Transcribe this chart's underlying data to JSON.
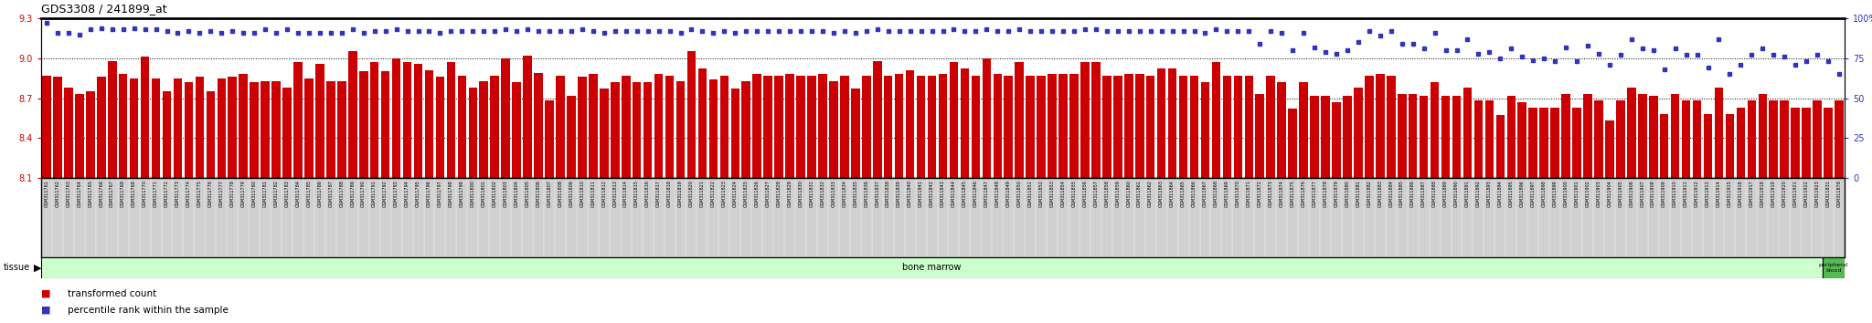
{
  "title": "GDS3308 / 241899_at",
  "ylim_left": [
    8.1,
    9.3
  ],
  "ylim_right": [
    0,
    100
  ],
  "yticks_left": [
    8.1,
    8.4,
    8.7,
    9.0,
    9.3
  ],
  "yticks_right": [
    0,
    25,
    50,
    75,
    100
  ],
  "bar_color": "#cc0000",
  "dot_color": "#3333bb",
  "bar_baseline": 8.1,
  "n_bone_marrow": 163,
  "n_total": 165,
  "samples": [
    "GSM311761",
    "GSM311762",
    "GSM311763",
    "GSM311764",
    "GSM311765",
    "GSM311766",
    "GSM311767",
    "GSM311768",
    "GSM311769",
    "GSM311770",
    "GSM311771",
    "GSM311772",
    "GSM311773",
    "GSM311774",
    "GSM311775",
    "GSM311776",
    "GSM311777",
    "GSM311778",
    "GSM311779",
    "GSM311780",
    "GSM311781",
    "GSM311782",
    "GSM311783",
    "GSM311784",
    "GSM311785",
    "GSM311786",
    "GSM311787",
    "GSM311788",
    "GSM311789",
    "GSM311790",
    "GSM311791",
    "GSM311792",
    "GSM311793",
    "GSM311794",
    "GSM311795",
    "GSM311796",
    "GSM311797",
    "GSM311798",
    "GSM311799",
    "GSM311800",
    "GSM311801",
    "GSM311802",
    "GSM311803",
    "GSM311804",
    "GSM311805",
    "GSM311806",
    "GSM311807",
    "GSM311808",
    "GSM311809",
    "GSM311810",
    "GSM311811",
    "GSM311812",
    "GSM311813",
    "GSM311814",
    "GSM311815",
    "GSM311816",
    "GSM311817",
    "GSM311818",
    "GSM311819",
    "GSM311820",
    "GSM311821",
    "GSM311822",
    "GSM311823",
    "GSM311824",
    "GSM311825",
    "GSM311826",
    "GSM311827",
    "GSM311828",
    "GSM311829",
    "GSM311830",
    "GSM311831",
    "GSM311832",
    "GSM311833",
    "GSM311834",
    "GSM311835",
    "GSM311836",
    "GSM311837",
    "GSM311838",
    "GSM311839",
    "GSM311840",
    "GSM311841",
    "GSM311842",
    "GSM311843",
    "GSM311844",
    "GSM311845",
    "GSM311846",
    "GSM311847",
    "GSM311848",
    "GSM311849",
    "GSM311850",
    "GSM311851",
    "GSM311852",
    "GSM311853",
    "GSM311854",
    "GSM311855",
    "GSM311856",
    "GSM311857",
    "GSM311858",
    "GSM311859",
    "GSM311860",
    "GSM311861",
    "GSM311862",
    "GSM311863",
    "GSM311864",
    "GSM311865",
    "GSM311866",
    "GSM311867",
    "GSM311868",
    "GSM311869",
    "GSM311870",
    "GSM311871",
    "GSM311872",
    "GSM311873",
    "GSM311874",
    "GSM311875",
    "GSM311876",
    "GSM311877",
    "GSM311878",
    "GSM311879",
    "GSM311880",
    "GSM311881",
    "GSM311882",
    "GSM311883",
    "GSM311884",
    "GSM311885",
    "GSM311886",
    "GSM311887",
    "GSM311888",
    "GSM311889",
    "GSM311890",
    "GSM311891",
    "GSM311892",
    "GSM311893",
    "GSM311894",
    "GSM311895",
    "GSM311896",
    "GSM311897",
    "GSM311898",
    "GSM311899",
    "GSM311900",
    "GSM311901",
    "GSM311902",
    "GSM311903",
    "GSM311904",
    "GSM311905",
    "GSM311906",
    "GSM311907",
    "GSM311908",
    "GSM311909",
    "GSM311910",
    "GSM311911",
    "GSM311912",
    "GSM311913",
    "GSM311914",
    "GSM311915",
    "GSM311916",
    "GSM311917",
    "GSM311918",
    "GSM311919",
    "GSM311920",
    "GSM311921",
    "GSM311922",
    "GSM311923",
    "GSM311831",
    "GSM311878"
  ],
  "bar_values": [
    8.87,
    8.86,
    8.78,
    8.73,
    8.75,
    8.86,
    8.98,
    8.88,
    8.85,
    9.01,
    8.85,
    8.75,
    8.85,
    8.82,
    8.86,
    8.75,
    8.85,
    8.86,
    8.88,
    8.82,
    8.83,
    8.83,
    8.78,
    8.97,
    8.85,
    8.96,
    8.83,
    8.83,
    9.05,
    8.9,
    8.97,
    8.9,
    9.0,
    8.97,
    8.96,
    8.91,
    8.86,
    8.97,
    8.87,
    8.78,
    8.83,
    8.87,
    9.0,
    8.82,
    9.02,
    8.89,
    8.68,
    8.87,
    8.72,
    8.86,
    8.88,
    8.77,
    8.82,
    8.87,
    8.82,
    8.82,
    8.88,
    8.87,
    8.83,
    9.05,
    8.92,
    8.84,
    8.87,
    8.77,
    8.83,
    8.88,
    8.87,
    8.87,
    8.88,
    8.87,
    8.87,
    8.88,
    8.83,
    8.87,
    8.77,
    8.87,
    8.98,
    8.87,
    8.88,
    8.91,
    8.87,
    8.87,
    8.88,
    8.97,
    8.92,
    8.87,
    9.0,
    8.88,
    8.87,
    8.97,
    8.87,
    8.87,
    8.88,
    8.88,
    8.88,
    8.97,
    8.97,
    8.87,
    8.87,
    8.88,
    8.88,
    8.87,
    8.92,
    8.92,
    8.87,
    8.87,
    8.82,
    8.97,
    8.87,
    8.87,
    8.87,
    8.73,
    8.87,
    8.82,
    8.62,
    8.82,
    8.72,
    8.72,
    8.67,
    8.72,
    8.78,
    8.87,
    8.88,
    8.87,
    8.73,
    8.73,
    8.72,
    8.82,
    8.72,
    8.72,
    8.78,
    8.68,
    8.68,
    8.57,
    8.72,
    8.67,
    8.63,
    8.63,
    8.63,
    8.73,
    8.63,
    8.73,
    8.68,
    8.53,
    8.68,
    8.78,
    8.73,
    8.72,
    8.58,
    8.73,
    8.68,
    8.68,
    8.58,
    8.78,
    8.58,
    8.63,
    8.68,
    8.73,
    8.68,
    8.68,
    8.63,
    8.63,
    8.68,
    8.63,
    8.68
  ],
  "percentile_values": [
    97,
    91,
    91,
    90,
    93,
    94,
    93,
    93,
    94,
    93,
    93,
    92,
    91,
    92,
    91,
    92,
    91,
    92,
    91,
    91,
    93,
    91,
    93,
    91,
    91,
    91,
    91,
    91,
    93,
    91,
    92,
    92,
    93,
    92,
    92,
    92,
    91,
    92,
    92,
    92,
    92,
    92,
    93,
    92,
    93,
    92,
    92,
    92,
    92,
    93,
    92,
    91,
    92,
    92,
    92,
    92,
    92,
    92,
    91,
    93,
    92,
    91,
    92,
    91,
    92,
    92,
    92,
    92,
    92,
    92,
    92,
    92,
    91,
    92,
    91,
    92,
    93,
    92,
    92,
    92,
    92,
    92,
    92,
    93,
    92,
    92,
    93,
    92,
    92,
    93,
    92,
    92,
    92,
    92,
    92,
    93,
    93,
    92,
    92,
    92,
    92,
    92,
    92,
    92,
    92,
    92,
    91,
    93,
    92,
    92,
    92,
    84,
    92,
    91,
    80,
    91,
    82,
    79,
    78,
    80,
    85,
    92,
    89,
    92,
    84,
    84,
    81,
    91,
    80,
    80,
    87,
    78,
    79,
    75,
    81,
    76,
    74,
    75,
    73,
    82,
    73,
    83,
    78,
    71,
    77,
    87,
    81,
    80,
    68,
    81,
    77,
    77,
    69,
    87,
    65,
    71,
    77,
    81,
    77,
    76,
    71,
    73,
    77,
    73,
    65
  ],
  "bone_marrow_color": "#ccffcc",
  "peripheral_blood_color": "#55bb55",
  "tick_bg_color": "#d0d0d0",
  "axis_label_color_left": "#cc0000",
  "axis_label_color_right": "#3333bb"
}
